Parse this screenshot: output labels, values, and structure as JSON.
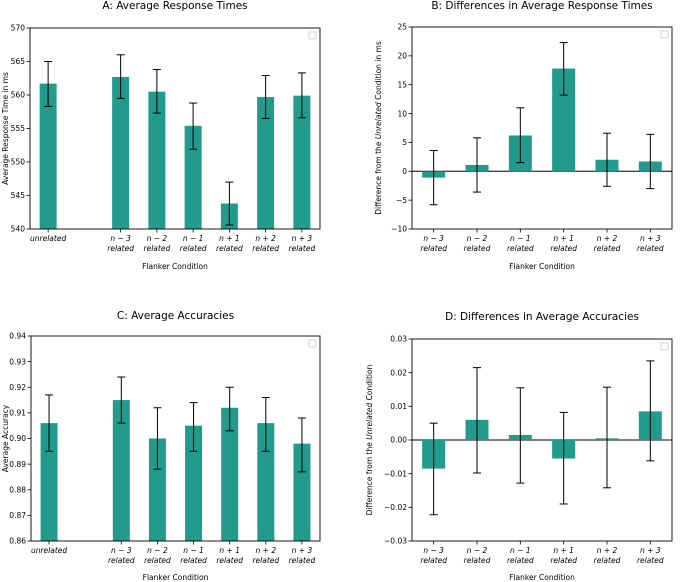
{
  "colors": {
    "bar": "#229a8c",
    "axis": "#000000",
    "legend_border": "#c8c8c8"
  },
  "chart_data": [
    {
      "id": "A",
      "type": "bar",
      "title": "A: Average Response Times",
      "xlabel": "Flanker Condition",
      "ylabel": "Average Response Time in ms",
      "ylim": [
        540,
        570
      ],
      "yticks": [
        "540",
        "545",
        "550",
        "555",
        "560",
        "565",
        "570"
      ],
      "categories": [
        {
          "line1": "unrelated",
          "line2": ""
        },
        {
          "line1": "n − 3",
          "line2": "related"
        },
        {
          "line1": "n − 2",
          "line2": "related"
        },
        {
          "line1": "n − 1",
          "line2": "related"
        },
        {
          "line1": "n + 1",
          "line2": "related"
        },
        {
          "line1": "n + 2",
          "line2": "related"
        },
        {
          "line1": "n + 3",
          "line2": "related"
        }
      ],
      "slots": [
        0,
        2,
        3,
        4,
        5,
        6,
        7
      ],
      "values": [
        561.7,
        562.7,
        560.5,
        555.4,
        543.8,
        559.7,
        559.9
      ],
      "err_low": [
        558.3,
        559.5,
        557.3,
        551.9,
        540.6,
        556.5,
        556.6
      ],
      "err_high": [
        565.0,
        566.0,
        563.8,
        558.8,
        547.0,
        562.9,
        563.3
      ],
      "legend": "empty box, top-right"
    },
    {
      "id": "B",
      "type": "bar",
      "title": "B: Differences in Average Response Times",
      "xlabel": "Flanker Condition",
      "ylabel_parts": [
        "Difference from the ",
        "Unrelated",
        " Condition in ms"
      ],
      "ylim": [
        -10,
        25
      ],
      "yticks": [
        "−10",
        "−5",
        "0",
        "5",
        "10",
        "15",
        "20",
        "25"
      ],
      "categories": [
        {
          "line1": "n − 3",
          "line2": "related"
        },
        {
          "line1": "n − 2",
          "line2": "related"
        },
        {
          "line1": "n − 1",
          "line2": "related"
        },
        {
          "line1": "n + 1",
          "line2": "related"
        },
        {
          "line1": "n + 2",
          "line2": "related"
        },
        {
          "line1": "n + 3",
          "line2": "related"
        }
      ],
      "slots": [
        0,
        1,
        2,
        3,
        4,
        5
      ],
      "values": [
        -1.1,
        1.1,
        6.2,
        17.8,
        2.0,
        1.7
      ],
      "err_low": [
        -5.8,
        -3.6,
        1.5,
        13.2,
        -2.6,
        -3.0
      ],
      "err_high": [
        3.6,
        5.8,
        11.0,
        22.3,
        6.6,
        6.4
      ],
      "zero_line": true,
      "legend": "empty box, top-right"
    },
    {
      "id": "C",
      "type": "bar",
      "title": "C: Average Accuracies",
      "xlabel": "Flanker Condition",
      "ylabel": "Average Accuracy",
      "ylim": [
        0.86,
        0.94
      ],
      "yticks": [
        "0.86",
        "0.87",
        "0.88",
        "0.89",
        "0.90",
        "0.91",
        "0.92",
        "0.93",
        "0.94"
      ],
      "categories": [
        {
          "line1": "unrelated",
          "line2": ""
        },
        {
          "line1": "n − 3",
          "line2": "related"
        },
        {
          "line1": "n − 2",
          "line2": "related"
        },
        {
          "line1": "n − 1",
          "line2": "related"
        },
        {
          "line1": "n + 1",
          "line2": "related"
        },
        {
          "line1": "n + 2",
          "line2": "related"
        },
        {
          "line1": "n + 3",
          "line2": "related"
        }
      ],
      "slots": [
        0,
        2,
        3,
        4,
        5,
        6,
        7
      ],
      "values": [
        0.906,
        0.915,
        0.9,
        0.905,
        0.912,
        0.906,
        0.898
      ],
      "err_low": [
        0.895,
        0.906,
        0.888,
        0.895,
        0.903,
        0.895,
        0.887
      ],
      "err_high": [
        0.917,
        0.924,
        0.912,
        0.914,
        0.92,
        0.916,
        0.908
      ],
      "legend": "empty box, top-right"
    },
    {
      "id": "D",
      "type": "bar",
      "title": "D: Differences in Average Accuracies",
      "xlabel": "Flanker Condition",
      "ylabel_parts": [
        "Difference from the ",
        "Unrelated",
        " Condition"
      ],
      "ylim": [
        -0.03,
        0.03
      ],
      "yticks": [
        "−0.03",
        "−0.02",
        "−0.01",
        "0.00",
        "0.01",
        "0.02",
        "0.03"
      ],
      "categories": [
        {
          "line1": "n − 3",
          "line2": "related"
        },
        {
          "line1": "n − 2",
          "line2": "related"
        },
        {
          "line1": "n − 1",
          "line2": "related"
        },
        {
          "line1": "n + 1",
          "line2": "related"
        },
        {
          "line1": "n + 2",
          "line2": "related"
        },
        {
          "line1": "n + 3",
          "line2": "related"
        }
      ],
      "slots": [
        0,
        1,
        2,
        3,
        4,
        5
      ],
      "values": [
        -0.0085,
        0.006,
        0.0015,
        -0.0055,
        0.0005,
        0.0085
      ],
      "err_low": [
        -0.0222,
        -0.0098,
        -0.0128,
        -0.019,
        -0.0142,
        -0.0062
      ],
      "err_high": [
        0.005,
        0.0215,
        0.0155,
        0.0082,
        0.0157,
        0.0235
      ],
      "zero_line": true,
      "legend": "empty box, top-right"
    }
  ]
}
